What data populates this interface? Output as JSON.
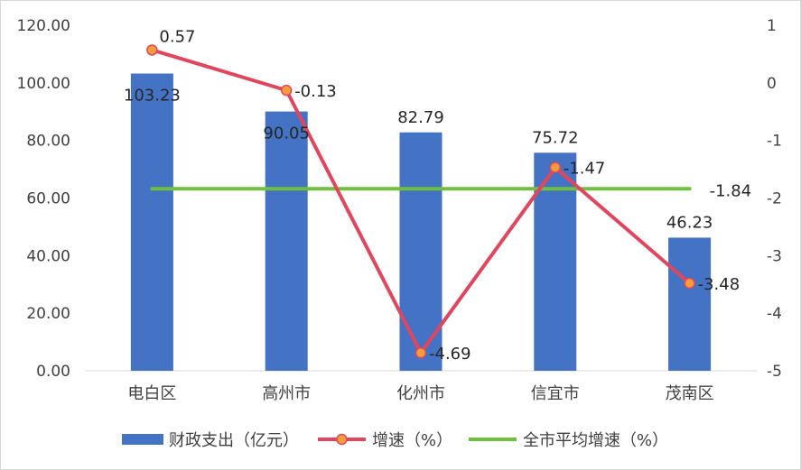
{
  "chart_data": {
    "type": "bar+line",
    "categories": [
      "电白区",
      "高州市",
      "化州市",
      "信宜市",
      "茂南区"
    ],
    "series": [
      {
        "name": "财政支出（亿元）",
        "type": "bar",
        "axis": "left",
        "color": "#4472c4",
        "values": [
          103.23,
          90.05,
          82.79,
          75.72,
          46.23
        ],
        "labels": [
          "103.23",
          "90.05",
          "82.79",
          "75.72",
          "46.23"
        ]
      },
      {
        "name": "增速（%）",
        "type": "line",
        "axis": "right",
        "color": "#e0465e",
        "marker_fill": "#f39c3c",
        "values": [
          0.57,
          -0.13,
          -4.69,
          -1.47,
          -3.48
        ],
        "labels": [
          "0.57",
          "-0.13",
          "-4.69",
          "-1.47",
          "-3.48"
        ]
      },
      {
        "name": "全市平均增速（%）",
        "type": "line",
        "axis": "right",
        "color": "#70c040",
        "values": [
          -1.84,
          -1.84,
          -1.84,
          -1.84,
          -1.84
        ],
        "end_label": "-1.84"
      }
    ],
    "left_axis": {
      "min": 0,
      "max": 120,
      "ticks": [
        "0.00",
        "20.00",
        "40.00",
        "60.00",
        "80.00",
        "100.00",
        "120.00"
      ]
    },
    "right_axis": {
      "min": -5,
      "max": 1,
      "ticks": [
        "-5",
        "-4",
        "-3",
        "-2",
        "-1",
        "0",
        "1"
      ]
    },
    "grid": false,
    "legend_position": "bottom"
  }
}
